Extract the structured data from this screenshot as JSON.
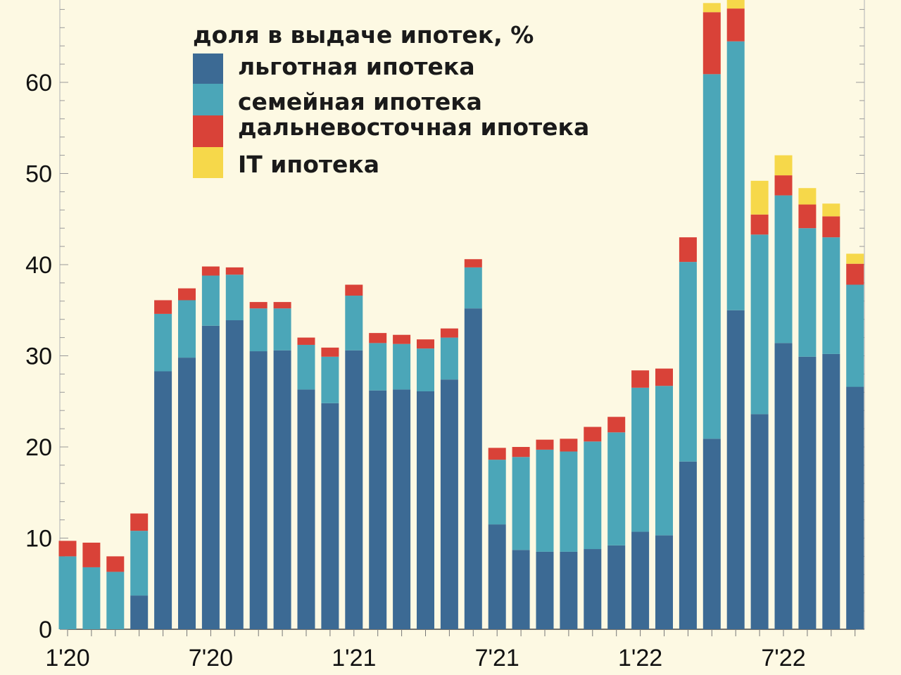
{
  "chart_data": {
    "type": "bar",
    "stacked": true,
    "title": "доля в выдаче ипотек, %",
    "xlabel": "",
    "ylabel": "",
    "ylim": [
      0,
      69
    ],
    "yticks": [
      0,
      10,
      20,
      30,
      40,
      50,
      60
    ],
    "x_tick_labels": [
      {
        "index": 0,
        "label": "1'20"
      },
      {
        "index": 6,
        "label": "7'20"
      },
      {
        "index": 12,
        "label": "1'21"
      },
      {
        "index": 18,
        "label": "7'21"
      },
      {
        "index": 24,
        "label": "1'22"
      },
      {
        "index": 30,
        "label": "7'22"
      }
    ],
    "legend_position": "top-left",
    "grid": false,
    "series": [
      {
        "name": "льготная ипотека",
        "color": "#3c6a94",
        "values": [
          0,
          0,
          0,
          3.7,
          28.3,
          29.8,
          33.3,
          33.9,
          30.5,
          30.6,
          26.3,
          24.8,
          30.6,
          26.2,
          26.3,
          26.1,
          27.4,
          35.2,
          11.5,
          8.7,
          8.5,
          8.5,
          8.8,
          9.2,
          10.7,
          10.3,
          18.4,
          20.9,
          35.0,
          23.6,
          31.4,
          29.9,
          30.2,
          26.6
        ]
      },
      {
        "name": "семейная ипотека",
        "color": "#4ba6b8",
        "values": [
          8.0,
          6.8,
          6.3,
          7.1,
          6.3,
          6.3,
          5.5,
          5.0,
          4.7,
          4.6,
          4.9,
          5.1,
          6.0,
          5.2,
          5.0,
          4.7,
          4.6,
          4.5,
          7.1,
          10.2,
          11.2,
          11.0,
          11.8,
          12.4,
          15.8,
          16.4,
          21.9,
          40.0,
          29.5,
          19.7,
          16.2,
          14.1,
          12.8,
          11.2
        ]
      },
      {
        "name": "дальневосточная ипотека",
        "color": "#d94238",
        "values": [
          1.7,
          2.7,
          1.7,
          1.9,
          1.5,
          1.3,
          1.0,
          0.8,
          0.7,
          0.7,
          0.8,
          1.0,
          1.2,
          1.1,
          1.0,
          1.0,
          1.0,
          0.9,
          1.3,
          1.1,
          1.1,
          1.4,
          1.6,
          1.7,
          1.9,
          1.9,
          2.7,
          6.8,
          3.6,
          2.2,
          2.2,
          2.6,
          2.3,
          2.3
        ]
      },
      {
        "name": "IT ипотека",
        "color": "#f6d84a",
        "values": [
          0,
          0,
          0,
          0,
          0,
          0,
          0,
          0,
          0,
          0,
          0,
          0,
          0,
          0,
          0,
          0,
          0,
          0,
          0,
          0,
          0,
          0,
          0,
          0,
          0,
          0,
          0,
          1.0,
          1.5,
          3.7,
          2.2,
          1.8,
          1.4,
          1.1
        ]
      }
    ]
  }
}
